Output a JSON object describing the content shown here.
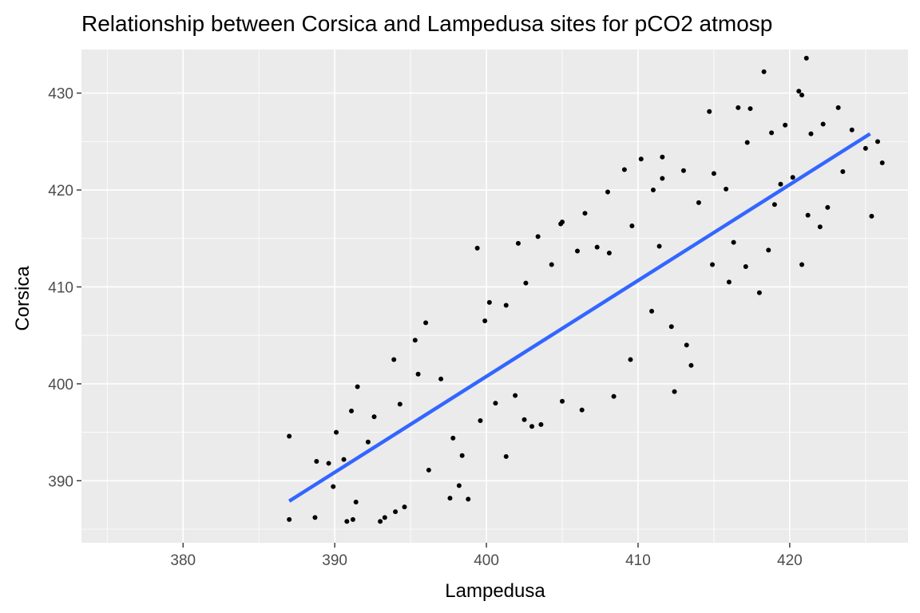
{
  "chart_data": {
    "type": "scatter",
    "title": "Relationship between Corsica and Lampedusa sites for pCO2 atmosp",
    "xlabel": "Lampedusa",
    "ylabel": "Corsica",
    "xlim": [
      373.3,
      427.8
    ],
    "ylim": [
      383.6,
      434.5
    ],
    "xticks": [
      380,
      390,
      400,
      410,
      420
    ],
    "yticks": [
      390,
      400,
      410,
      420,
      430
    ],
    "grid": true,
    "legend": "none",
    "trend_line": {
      "method": "linear fit",
      "color": "#3366ff",
      "points": [
        [
          387.0,
          387.9
        ],
        [
          425.3,
          425.8
        ]
      ]
    },
    "point_color": "#000000",
    "series": [
      {
        "values": [
          [
            387.0,
            394.6
          ],
          [
            387.0,
            386.0
          ],
          [
            388.7,
            386.2
          ],
          [
            388.8,
            392.0
          ],
          [
            389.6,
            391.8
          ],
          [
            390.1,
            395.0
          ],
          [
            390.6,
            392.2
          ],
          [
            390.8,
            385.8
          ],
          [
            391.2,
            386.0
          ],
          [
            391.4,
            387.8
          ],
          [
            391.5,
            399.7
          ],
          [
            391.1,
            397.2
          ],
          [
            392.2,
            394.0
          ],
          [
            393.0,
            385.8
          ],
          [
            393.3,
            386.2
          ],
          [
            394.0,
            386.8
          ],
          [
            394.6,
            387.3
          ],
          [
            393.9,
            402.5
          ],
          [
            395.3,
            404.5
          ],
          [
            396.0,
            406.3
          ],
          [
            397.6,
            388.2
          ],
          [
            398.2,
            389.5
          ],
          [
            398.8,
            388.1
          ],
          [
            399.4,
            414.0
          ],
          [
            402.1,
            414.5
          ],
          [
            403.4,
            415.2
          ],
          [
            401.3,
            392.5
          ],
          [
            402.5,
            396.3
          ],
          [
            403.0,
            395.6
          ],
          [
            404.9,
            416.5
          ],
          [
            405.0,
            416.7
          ],
          [
            406.5,
            417.6
          ],
          [
            408.0,
            419.8
          ],
          [
            408.4,
            398.7
          ],
          [
            409.5,
            402.5
          ],
          [
            409.1,
            422.1
          ],
          [
            410.2,
            423.2
          ],
          [
            411.0,
            420.0
          ],
          [
            411.6,
            421.2
          ],
          [
            411.6,
            423.4
          ],
          [
            412.4,
            399.2
          ],
          [
            413.0,
            422.0
          ],
          [
            413.5,
            401.9
          ],
          [
            414.7,
            428.1
          ],
          [
            415.0,
            421.7
          ],
          [
            416.6,
            428.5
          ],
          [
            417.4,
            428.4
          ],
          [
            417.2,
            424.9
          ],
          [
            418.0,
            409.4
          ],
          [
            418.3,
            432.2
          ],
          [
            418.8,
            425.9
          ],
          [
            419.7,
            426.7
          ],
          [
            420.6,
            430.2
          ],
          [
            420.8,
            429.8
          ],
          [
            421.1,
            433.6
          ],
          [
            421.4,
            425.8
          ],
          [
            422.2,
            426.8
          ],
          [
            422.0,
            416.2
          ],
          [
            423.2,
            428.5
          ],
          [
            424.1,
            426.2
          ],
          [
            425.0,
            424.3
          ],
          [
            425.4,
            417.3
          ],
          [
            425.8,
            425.0
          ],
          [
            426.1,
            422.8
          ],
          [
            420.8,
            412.3
          ],
          [
            416.0,
            410.5
          ],
          [
            414.9,
            412.3
          ],
          [
            406.3,
            397.3
          ],
          [
            405.0,
            398.2
          ],
          [
            403.6,
            395.8
          ],
          [
            401.9,
            398.8
          ],
          [
            400.6,
            398.0
          ],
          [
            397.0,
            400.5
          ],
          [
            395.5,
            401.0
          ],
          [
            394.3,
            397.9
          ],
          [
            392.6,
            396.6
          ],
          [
            389.9,
            389.4
          ],
          [
            396.2,
            391.1
          ],
          [
            397.8,
            394.4
          ],
          [
            398.4,
            392.6
          ],
          [
            399.6,
            396.2
          ],
          [
            399.9,
            406.5
          ],
          [
            400.2,
            408.4
          ],
          [
            401.3,
            408.1
          ],
          [
            402.6,
            410.4
          ],
          [
            404.3,
            412.3
          ],
          [
            406.0,
            413.7
          ],
          [
            407.3,
            414.1
          ],
          [
            408.1,
            413.5
          ],
          [
            409.6,
            416.3
          ],
          [
            410.9,
            407.5
          ],
          [
            412.2,
            405.9
          ],
          [
            413.2,
            404.0
          ],
          [
            411.4,
            414.2
          ],
          [
            414.0,
            418.7
          ],
          [
            415.8,
            420.1
          ],
          [
            416.3,
            414.6
          ],
          [
            417.1,
            412.1
          ],
          [
            418.6,
            413.8
          ],
          [
            419.4,
            420.6
          ],
          [
            420.2,
            421.3
          ],
          [
            421.2,
            417.4
          ],
          [
            422.5,
            418.2
          ],
          [
            423.5,
            421.9
          ],
          [
            419.0,
            418.5
          ]
        ]
      }
    ]
  }
}
